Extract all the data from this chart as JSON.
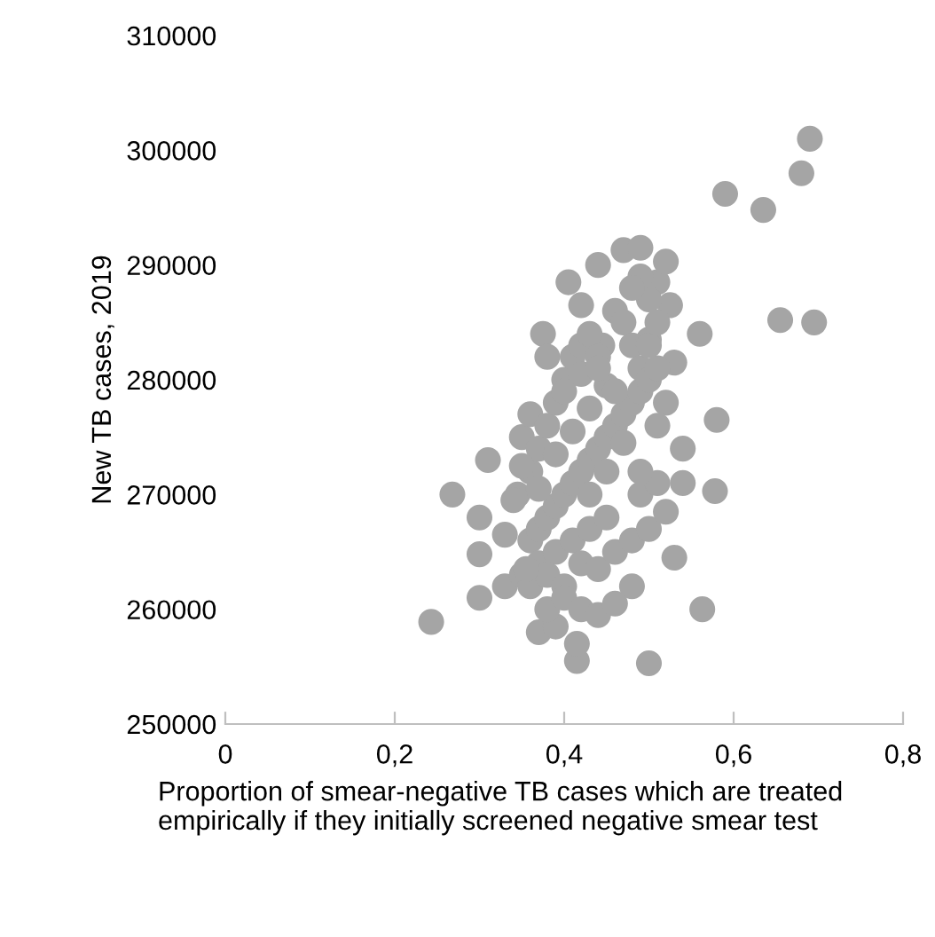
{
  "chart_data": {
    "type": "scatter",
    "xlabel": "Proportion of smear-negative TB cases which are treated empirically if they initially screened negative smear test",
    "ylabel": "New TB cases, 2019",
    "xlim": [
      0,
      0.8
    ],
    "xticks": [
      0,
      {
        "value": 0.2,
        "label": "0,2"
      },
      {
        "value": 0.4,
        "label": "0,4"
      },
      {
        "value": 0.6,
        "label": "0,6"
      },
      {
        "value": 0.8,
        "label": "0,8"
      }
    ],
    "ylim": [
      250000,
      310000
    ],
    "yticks": [
      250000,
      260000,
      270000,
      280000,
      290000,
      300000,
      310000
    ],
    "grid": false,
    "marker": "circle",
    "series": [
      {
        "color": "#a5a5a5",
        "x": [
          0.69,
          0.68,
          0.59,
          0.635,
          0.655,
          0.695,
          0.58,
          0.578,
          0.56,
          0.563,
          0.243,
          0.268,
          0.3,
          0.3,
          0.3,
          0.31,
          0.5,
          0.415,
          0.415,
          0.37,
          0.39,
          0.53,
          0.405,
          0.47,
          0.49,
          0.51,
          0.52,
          0.525,
          0.53,
          0.52,
          0.54,
          0.54,
          0.33,
          0.33,
          0.345,
          0.35,
          0.36,
          0.375,
          0.38,
          0.5,
          0.49,
          0.46,
          0.445,
          0.36,
          0.37,
          0.38,
          0.39,
          0.4,
          0.41,
          0.42,
          0.43,
          0.44,
          0.47,
          0.48,
          0.49,
          0.5,
          0.36,
          0.37,
          0.38,
          0.39,
          0.4,
          0.41,
          0.42,
          0.43,
          0.44,
          0.45,
          0.46,
          0.47,
          0.48,
          0.49,
          0.5,
          0.51,
          0.35,
          0.37,
          0.39,
          0.41,
          0.43,
          0.45,
          0.49,
          0.51,
          0.36,
          0.38,
          0.4,
          0.42,
          0.44,
          0.46,
          0.48,
          0.5,
          0.52,
          0.35,
          0.37,
          0.39,
          0.41,
          0.43,
          0.45,
          0.47,
          0.49,
          0.51,
          0.38,
          0.4,
          0.42,
          0.44,
          0.46,
          0.48,
          0.4,
          0.42,
          0.44,
          0.46,
          0.43,
          0.45,
          0.34,
          0.355,
          0.5,
          0.51,
          0.48,
          0.44,
          0.42
        ],
        "values": [
          301000,
          298000,
          296200,
          294800,
          285200,
          285000,
          276500,
          270300,
          284000,
          260000,
          258900,
          270000,
          268000,
          264800,
          261000,
          273000,
          255300,
          255500,
          257000,
          258000,
          258500,
          264500,
          288500,
          291300,
          291500,
          288500,
          290300,
          286500,
          281500,
          278000,
          274000,
          271000,
          262000,
          266500,
          270000,
          275000,
          277000,
          284000,
          282000,
          287000,
          289000,
          286000,
          283000,
          272000,
          274000,
          276000,
          278000,
          280000,
          282000,
          283000,
          284000,
          282000,
          285000,
          283000,
          281000,
          283500,
          266000,
          267000,
          268000,
          269000,
          270000,
          271000,
          272000,
          273000,
          274000,
          275000,
          276000,
          277000,
          278000,
          279000,
          280000,
          281000,
          263000,
          264000,
          265000,
          266000,
          267000,
          268000,
          270000,
          271000,
          262000,
          263000,
          262000,
          264000,
          263500,
          265000,
          266000,
          267000,
          268500,
          272500,
          270500,
          273500,
          275500,
          277500,
          279500,
          274500,
          272000,
          276000,
          260000,
          261000,
          260000,
          259500,
          260500,
          262000,
          279000,
          280500,
          281000,
          279000,
          270000,
          272000,
          269500,
          263500,
          283000,
          285000,
          288000,
          290000,
          286500
        ]
      }
    ]
  }
}
